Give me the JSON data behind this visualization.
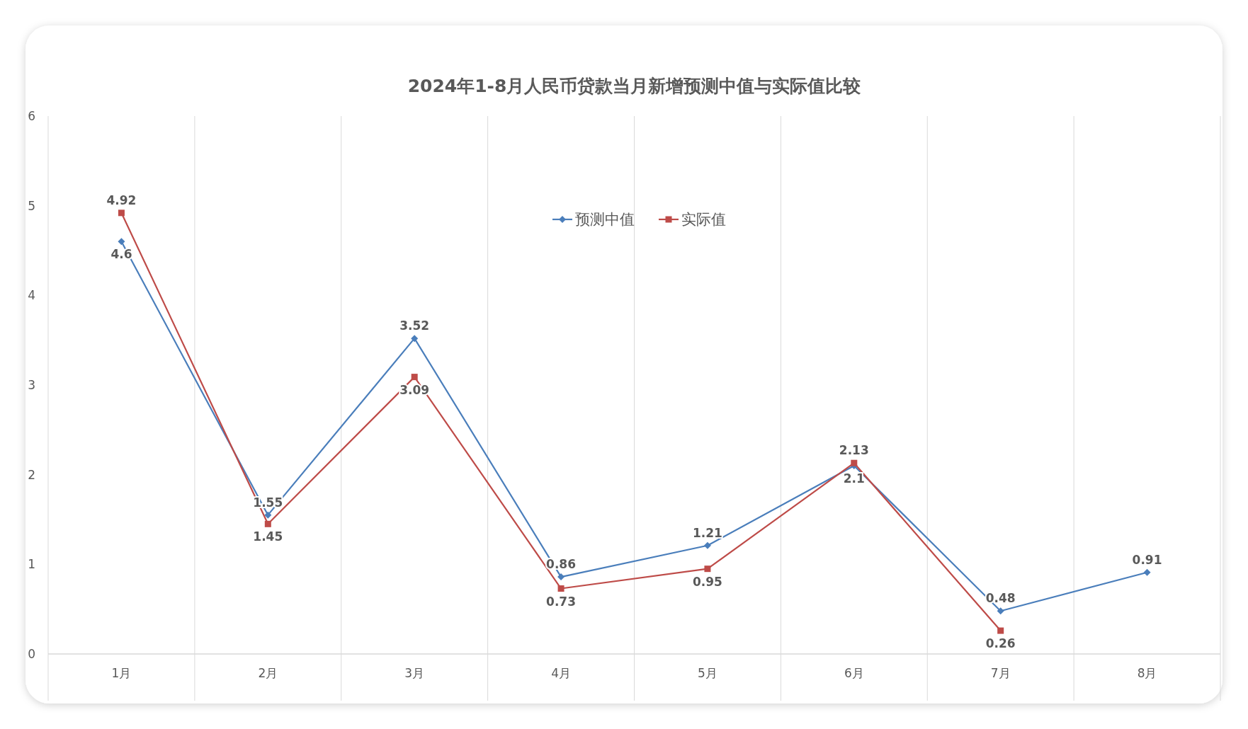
{
  "chart_data": {
    "type": "line",
    "title": "2024年1-8月人民币贷款当月新增预测中值与实际值比较",
    "categories": [
      "1月",
      "2月",
      "3月",
      "4月",
      "5月",
      "6月",
      "7月",
      "8月"
    ],
    "series": [
      {
        "name": "预测中值",
        "color": "#4a7ebb",
        "marker": "diamond",
        "values": [
          4.6,
          1.55,
          3.52,
          0.86,
          1.21,
          2.1,
          0.48,
          0.91
        ]
      },
      {
        "name": "实际值",
        "color": "#be4b48",
        "marker": "square",
        "values": [
          4.92,
          1.45,
          3.09,
          0.73,
          0.95,
          2.13,
          0.26,
          null
        ]
      }
    ],
    "ylim": [
      0,
      6
    ],
    "yticks": [
      0,
      1,
      2,
      3,
      4,
      5,
      6
    ],
    "grid": "x",
    "legend": "top",
    "data_labels": true
  }
}
